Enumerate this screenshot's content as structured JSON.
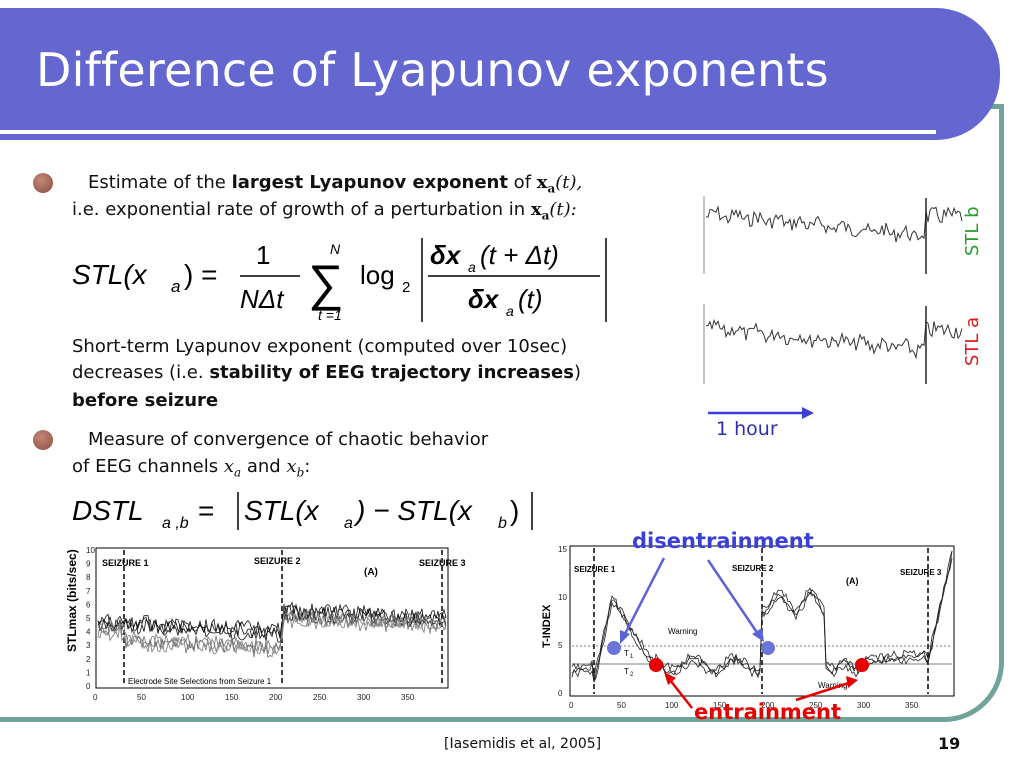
{
  "title": "Difference of Lyapunov exponents",
  "bullet1": {
    "l1a": "Estimate of the ",
    "l1b": "largest Lyapunov exponent",
    "l1c": " of ",
    "x": "x",
    "a": "a",
    "t": "(t),",
    "l2": "i.e. exponential rate of growth of a perturbation in ",
    "t2": "(t):"
  },
  "eq1": {
    "lhs": "STL(x",
    "lhs_sub": "a",
    "lhs_end": ") =",
    "num": "1",
    "den": "NΔt",
    "sum_top": "N",
    "sum_bot": "t =1",
    "sigma": "∑",
    "log": "log",
    "log_sub": "2",
    "top_num": "δx",
    "top_sub": "a",
    "top_arg": "(t + Δt)",
    "bot_num": "δx",
    "bot_sub": "a",
    "bot_arg": "(t)"
  },
  "para": {
    "l1": "Short-term Lyapunov exponent (computed over 10sec)",
    "l2a": "decreases (i.e. ",
    "l2b": "stability of EEG trajectory increases",
    "l2c": ")",
    "l3": "before seizure"
  },
  "bullet2": {
    "l1": "Measure of convergence of chaotic behavior",
    "l2": "of EEG channels ",
    "xa": "x",
    "xa_sub": "a",
    "and": " and ",
    "xb": "x",
    "xb_sub": "b",
    "colon": ":"
  },
  "eq2": "DSTL_{a,b} = |STL(x_a) − STL(x_b)|",
  "eq2_parts": {
    "d": "DSTL",
    "d_sub": "a ,b",
    "eq": " = ",
    "s1": "STL(x",
    "s1_sub": "a",
    "mid": ") − STL(x",
    "s2_sub": "b",
    "end": ")"
  },
  "stl_labels": {
    "b": "STL b",
    "a": "STL a",
    "b_color": "#2a9d2a",
    "a_color": "#e01b1b"
  },
  "hour_label": "1 hour",
  "left_plot": {
    "ylabel": "STLmax (bits/sec)",
    "yticks": [
      "10",
      "9",
      "8",
      "7",
      "6",
      "5",
      "4",
      "3",
      "2",
      "1",
      "0"
    ],
    "xticks": [
      "0",
      "50",
      "100",
      "150",
      "200",
      "250",
      "300",
      "350"
    ],
    "seizures": [
      "SEIZURE 1",
      "SEIZURE 2",
      "SEIZURE 3"
    ],
    "tag": "(A)",
    "caption": "Electrode Site Selections from Seizure 1"
  },
  "right_plot": {
    "ylabel": "T-INDEX",
    "yticks": [
      "15",
      "10",
      "5",
      "0"
    ],
    "xticks": [
      "0",
      "50",
      "100",
      "150",
      "200",
      "250",
      "300",
      "350"
    ],
    "seizures": [
      "SEIZURE 1",
      "SEIZURE 2",
      "SEIZURE 3"
    ],
    "tag": "(A)",
    "warning": "Warning",
    "t1": "T",
    "t1_sub": "1",
    "t2": "T",
    "t2_sub": "2"
  },
  "disentrainment": "disentrainment",
  "entrainment": "entrainment",
  "colors": {
    "title_bg": "#6467cf",
    "frame": "#6fa39c",
    "blue": "#3a3fd6",
    "red": "#e60000",
    "marker_blue": "#6b74d8"
  },
  "citation": "[Iasemidis et al, 2005]",
  "page": "19"
}
